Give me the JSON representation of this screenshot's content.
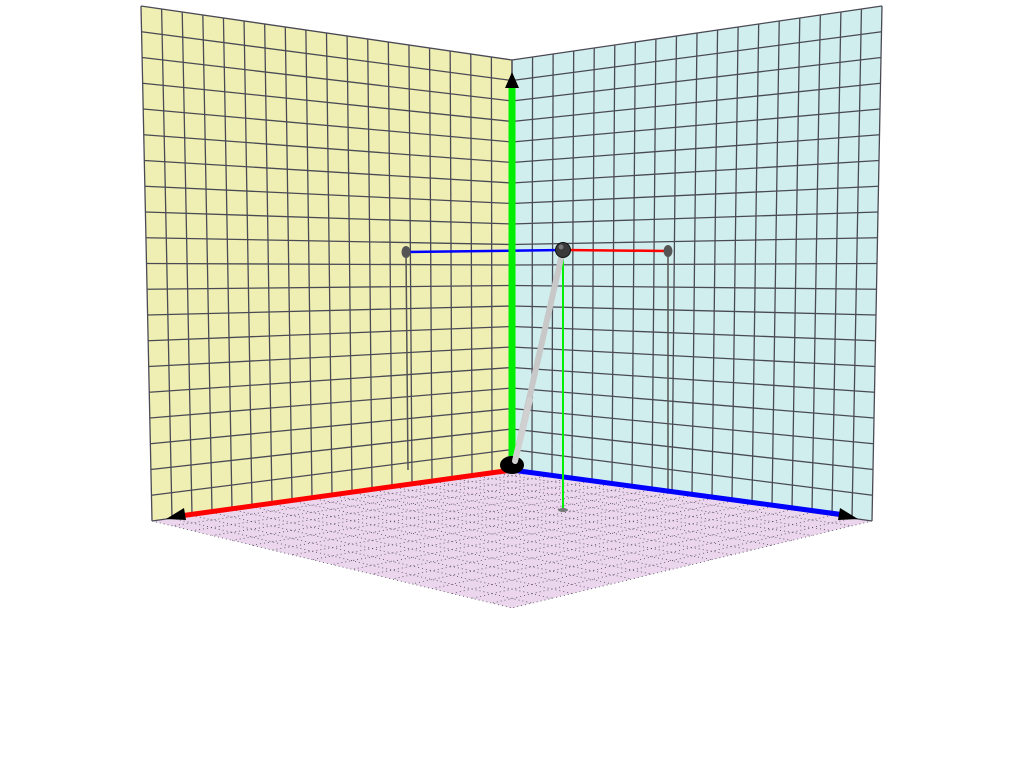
{
  "scene": {
    "colors": {
      "left_wall": "#f0efb3",
      "right_wall": "#d0eeee",
      "floor": "#ecd6ee",
      "grid": "#4a4a55",
      "x_axis": "#ff0000",
      "y_axis": "#00ee00",
      "z_axis": "#0000ff",
      "vector": "#c8c8c8",
      "point": "#333333"
    },
    "icons": {
      "axis_arrow": "triangle-arrowhead",
      "origin": "black-sphere",
      "vector_tip": "dark-sphere"
    }
  }
}
